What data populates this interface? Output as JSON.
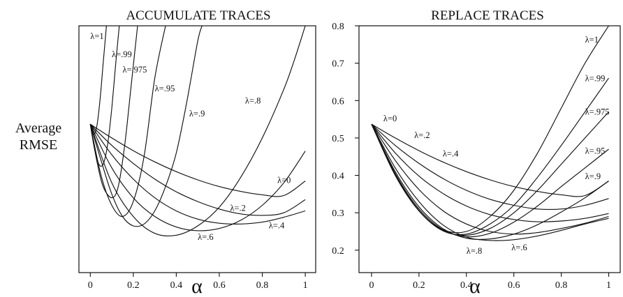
{
  "chart_data": [
    {
      "type": "line",
      "title": "ACCUMULATE TRACES",
      "xlabel": "α",
      "ylabel": "Average RMSE",
      "xlim": [
        0,
        1
      ],
      "ylim": [
        0.14,
        0.8
      ],
      "x_ticks": [
        "0",
        "0.2",
        "0.4",
        "0.6",
        "0.8",
        "1"
      ],
      "grid": false,
      "series": [
        {
          "name": "λ=0",
          "x": [
            0,
            0.1,
            0.2,
            0.3,
            0.4,
            0.5,
            0.6,
            0.7,
            0.8,
            0.9,
            1.0
          ],
          "y": [
            0.537,
            0.5,
            0.466,
            0.436,
            0.41,
            0.388,
            0.37,
            0.357,
            0.348,
            0.346,
            0.385
          ]
        },
        {
          "name": "λ=.2",
          "x": [
            0,
            0.1,
            0.2,
            0.3,
            0.4,
            0.5,
            0.6,
            0.7,
            0.8,
            0.9,
            1.0
          ],
          "y": [
            0.537,
            0.48,
            0.432,
            0.39,
            0.356,
            0.33,
            0.31,
            0.297,
            0.293,
            0.3,
            0.335
          ]
        },
        {
          "name": "λ=.4",
          "x": [
            0,
            0.1,
            0.2,
            0.3,
            0.4,
            0.5,
            0.6,
            0.7,
            0.8,
            0.9,
            1.0
          ],
          "y": [
            0.537,
            0.455,
            0.39,
            0.34,
            0.305,
            0.283,
            0.272,
            0.27,
            0.275,
            0.288,
            0.305
          ]
        },
        {
          "name": "λ=.6",
          "x": [
            0,
            0.1,
            0.2,
            0.3,
            0.4,
            0.5,
            0.6,
            0.7,
            0.8,
            0.9,
            1.0
          ],
          "y": [
            0.537,
            0.42,
            0.34,
            0.29,
            0.262,
            0.252,
            0.258,
            0.28,
            0.32,
            0.38,
            0.465
          ]
        },
        {
          "name": "λ=.8",
          "x": [
            0,
            0.1,
            0.2,
            0.3,
            0.4,
            0.5,
            0.6,
            0.7,
            0.8,
            0.9,
            0.95,
            1.0
          ],
          "y": [
            0.537,
            0.38,
            0.29,
            0.245,
            0.24,
            0.265,
            0.315,
            0.395,
            0.5,
            0.63,
            0.71,
            0.8
          ]
        },
        {
          "name": "λ=.9",
          "x": [
            0,
            0.05,
            0.1,
            0.15,
            0.2,
            0.25,
            0.3,
            0.35,
            0.4,
            0.45,
            0.5,
            0.52
          ],
          "y": [
            0.537,
            0.44,
            0.35,
            0.29,
            0.265,
            0.27,
            0.305,
            0.37,
            0.46,
            0.6,
            0.76,
            0.8
          ]
        },
        {
          "name": "λ=.95",
          "x": [
            0,
            0.05,
            0.1,
            0.15,
            0.2,
            0.25,
            0.3,
            0.35
          ],
          "y": [
            0.537,
            0.4,
            0.32,
            0.29,
            0.33,
            0.45,
            0.66,
            0.8
          ]
        },
        {
          "name": "λ=.975",
          "x": [
            0,
            0.03,
            0.06,
            0.1,
            0.13,
            0.16,
            0.19,
            0.22
          ],
          "y": [
            0.537,
            0.44,
            0.37,
            0.34,
            0.37,
            0.48,
            0.64,
            0.8
          ]
        },
        {
          "name": "λ=.99",
          "x": [
            0,
            0.02,
            0.04,
            0.06,
            0.08,
            0.1,
            0.12,
            0.135
          ],
          "y": [
            0.537,
            0.47,
            0.43,
            0.43,
            0.48,
            0.58,
            0.71,
            0.8
          ]
        },
        {
          "name": "λ=1",
          "x": [
            0,
            0.015,
            0.03,
            0.045,
            0.06,
            0.075
          ],
          "y": [
            0.537,
            0.51,
            0.53,
            0.6,
            0.7,
            0.8
          ]
        }
      ],
      "curve_labels": [
        {
          "text": "λ=1",
          "x": 0.0,
          "y": 0.765
        },
        {
          "text": "λ=.99",
          "x": 0.1,
          "y": 0.716
        },
        {
          "text": "λ=.975",
          "x": 0.15,
          "y": 0.675
        },
        {
          "text": "λ=.95",
          "x": 0.3,
          "y": 0.625
        },
        {
          "text": "λ=.9",
          "x": 0.46,
          "y": 0.558
        },
        {
          "text": "λ=.8",
          "x": 0.72,
          "y": 0.592
        },
        {
          "text": "λ=0",
          "x": 0.87,
          "y": 0.38
        },
        {
          "text": "λ=.2",
          "x": 0.65,
          "y": 0.305
        },
        {
          "text": "λ=.4",
          "x": 0.83,
          "y": 0.258
        },
        {
          "text": "λ=.6",
          "x": 0.5,
          "y": 0.228
        }
      ]
    },
    {
      "type": "line",
      "title": "REPLACE TRACES",
      "xlabel": "α",
      "ylabel": "",
      "xlim": [
        0,
        1
      ],
      "ylim": [
        0.14,
        0.8
      ],
      "x_ticks": [
        "0",
        "0.2",
        "0.4",
        "0.6",
        "0.8",
        "1"
      ],
      "y_ticks": [
        "0.2",
        "0.3",
        "0.4",
        "0.5",
        "0.6",
        "0.7",
        "0.8"
      ],
      "grid": false,
      "series": [
        {
          "name": "λ=0",
          "x": [
            0,
            0.1,
            0.2,
            0.3,
            0.4,
            0.5,
            0.6,
            0.7,
            0.8,
            0.9,
            1.0
          ],
          "y": [
            0.537,
            0.5,
            0.466,
            0.436,
            0.41,
            0.388,
            0.37,
            0.357,
            0.348,
            0.346,
            0.385
          ]
        },
        {
          "name": "λ=.2",
          "x": [
            0,
            0.1,
            0.2,
            0.3,
            0.4,
            0.5,
            0.6,
            0.7,
            0.8,
            0.9,
            1.0
          ],
          "y": [
            0.537,
            0.48,
            0.432,
            0.392,
            0.36,
            0.336,
            0.32,
            0.31,
            0.31,
            0.32,
            0.338
          ]
        },
        {
          "name": "λ=.4",
          "x": [
            0,
            0.1,
            0.2,
            0.3,
            0.4,
            0.5,
            0.6,
            0.7,
            0.8,
            0.9,
            1.0
          ],
          "y": [
            0.537,
            0.46,
            0.398,
            0.352,
            0.318,
            0.295,
            0.282,
            0.276,
            0.278,
            0.285,
            0.298
          ]
        },
        {
          "name": "λ=.6",
          "x": [
            0,
            0.1,
            0.2,
            0.3,
            0.4,
            0.5,
            0.6,
            0.7,
            0.8,
            0.9,
            1.0
          ],
          "y": [
            0.537,
            0.44,
            0.362,
            0.306,
            0.27,
            0.25,
            0.243,
            0.247,
            0.258,
            0.272,
            0.29
          ]
        },
        {
          "name": "λ=.8",
          "x": [
            0,
            0.1,
            0.2,
            0.3,
            0.4,
            0.5,
            0.6,
            0.7,
            0.8,
            0.9,
            1.0
          ],
          "y": [
            0.537,
            0.42,
            0.33,
            0.268,
            0.235,
            0.226,
            0.228,
            0.238,
            0.253,
            0.27,
            0.285
          ]
        },
        {
          "name": "λ=.9",
          "x": [
            0,
            0.1,
            0.2,
            0.3,
            0.4,
            0.5,
            0.6,
            0.7,
            0.8,
            0.9,
            1.0
          ],
          "y": [
            0.537,
            0.41,
            0.316,
            0.258,
            0.232,
            0.23,
            0.243,
            0.268,
            0.302,
            0.34,
            0.385
          ]
        },
        {
          "name": "λ=.95",
          "x": [
            0,
            0.1,
            0.2,
            0.3,
            0.4,
            0.5,
            0.6,
            0.7,
            0.8,
            0.9,
            1.0
          ],
          "y": [
            0.537,
            0.405,
            0.31,
            0.255,
            0.236,
            0.245,
            0.275,
            0.318,
            0.37,
            0.42,
            0.47
          ]
        },
        {
          "name": "λ=.975",
          "x": [
            0,
            0.1,
            0.2,
            0.3,
            0.4,
            0.5,
            0.6,
            0.7,
            0.8,
            0.9,
            1.0
          ],
          "y": [
            0.537,
            0.402,
            0.306,
            0.253,
            0.24,
            0.258,
            0.3,
            0.36,
            0.43,
            0.5,
            0.57
          ]
        },
        {
          "name": "λ=.99",
          "x": [
            0,
            0.1,
            0.2,
            0.3,
            0.4,
            0.5,
            0.6,
            0.7,
            0.8,
            0.9,
            1.0
          ],
          "y": [
            0.537,
            0.4,
            0.305,
            0.252,
            0.243,
            0.27,
            0.32,
            0.395,
            0.48,
            0.57,
            0.66
          ]
        },
        {
          "name": "λ=1",
          "x": [
            0,
            0.1,
            0.2,
            0.3,
            0.4,
            0.5,
            0.6,
            0.7,
            0.8,
            0.9,
            1.0
          ],
          "y": [
            0.537,
            0.4,
            0.305,
            0.255,
            0.25,
            0.29,
            0.36,
            0.46,
            0.58,
            0.7,
            0.8
          ]
        }
      ],
      "curve_labels": [
        {
          "text": "λ=1",
          "x": 0.9,
          "y": 0.755
        },
        {
          "text": "λ=.99",
          "x": 0.9,
          "y": 0.652
        },
        {
          "text": "λ=.975",
          "x": 0.9,
          "y": 0.562
        },
        {
          "text": "λ=.95",
          "x": 0.9,
          "y": 0.458
        },
        {
          "text": "λ=.9",
          "x": 0.9,
          "y": 0.39
        },
        {
          "text": "λ=0",
          "x": 0.05,
          "y": 0.545
        },
        {
          "text": "λ=.2",
          "x": 0.18,
          "y": 0.5
        },
        {
          "text": "λ=.4",
          "x": 0.3,
          "y": 0.45
        },
        {
          "text": "λ=.8",
          "x": 0.4,
          "y": 0.19
        },
        {
          "text": "λ=.6",
          "x": 0.59,
          "y": 0.2
        }
      ]
    }
  ]
}
